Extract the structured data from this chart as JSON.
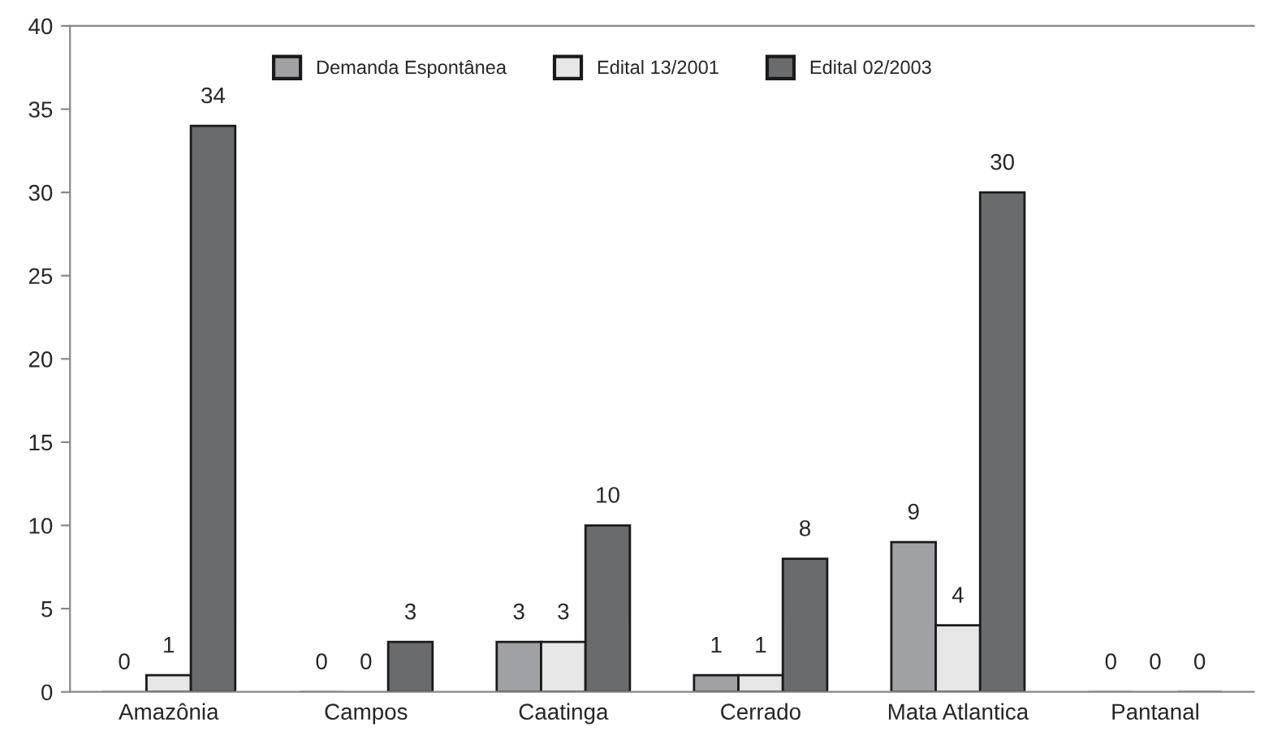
{
  "chart_data": {
    "type": "bar",
    "categories": [
      "Amazônia",
      "Campos",
      "Caatinga",
      "Cerrado",
      "Mata Atlantica",
      "Pantanal"
    ],
    "series": [
      {
        "name": "Demanda Espontânea",
        "color": "#a0a1a4",
        "values": [
          0,
          0,
          3,
          1,
          9,
          0
        ]
      },
      {
        "name": "Edital 13/2001",
        "color": "#e6e6e6",
        "values": [
          1,
          0,
          3,
          1,
          4,
          0
        ]
      },
      {
        "name": "Edital 02/2003",
        "color": "#6a6b6d",
        "values": [
          34,
          3,
          10,
          8,
          30,
          0
        ]
      }
    ],
    "ylim": [
      0,
      40
    ],
    "yticks": [
      0,
      5,
      10,
      15,
      20,
      25,
      30,
      35,
      40
    ],
    "data_labels": true,
    "grid": false,
    "legend": "top"
  }
}
